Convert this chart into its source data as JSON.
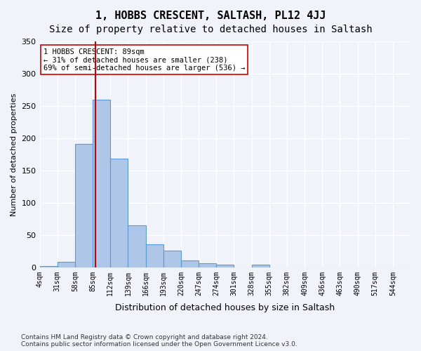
{
  "title": "1, HOBBS CRESCENT, SALTASH, PL12 4JJ",
  "subtitle": "Size of property relative to detached houses in Saltash",
  "xlabel": "Distribution of detached houses by size in Saltash",
  "ylabel": "Number of detached properties",
  "bin_labels": [
    "4sqm",
    "31sqm",
    "58sqm",
    "85sqm",
    "112sqm",
    "139sqm",
    "166sqm",
    "193sqm",
    "220sqm",
    "247sqm",
    "274sqm",
    "301sqm",
    "328sqm",
    "355sqm",
    "382sqm",
    "409sqm",
    "436sqm",
    "463sqm",
    "490sqm",
    "517sqm",
    "544sqm"
  ],
  "bar_values": [
    2,
    9,
    191,
    260,
    168,
    65,
    36,
    26,
    11,
    6,
    4,
    0,
    4,
    0,
    0,
    0,
    0,
    0,
    0,
    0,
    0
  ],
  "bar_color": "#aec6e8",
  "bar_edge_color": "#5b9bd5",
  "vline_x": 89,
  "vline_color": "#cc0000",
  "annotation_text": "1 HOBBS CRESCENT: 89sqm\n← 31% of detached houses are smaller (238)\n69% of semi-detached houses are larger (536) →",
  "annotation_box_color": "#ffffff",
  "annotation_box_edge": "#cc0000",
  "ylim": [
    0,
    350
  ],
  "yticks": [
    0,
    50,
    100,
    150,
    200,
    250,
    300,
    350
  ],
  "background_color": "#f0f4fa",
  "grid_color": "#ffffff",
  "title_fontsize": 11,
  "subtitle_fontsize": 10,
  "footer_text": "Contains HM Land Registry data © Crown copyright and database right 2024.\nContains public sector information licensed under the Open Government Licence v3.0.",
  "bin_width": 27
}
